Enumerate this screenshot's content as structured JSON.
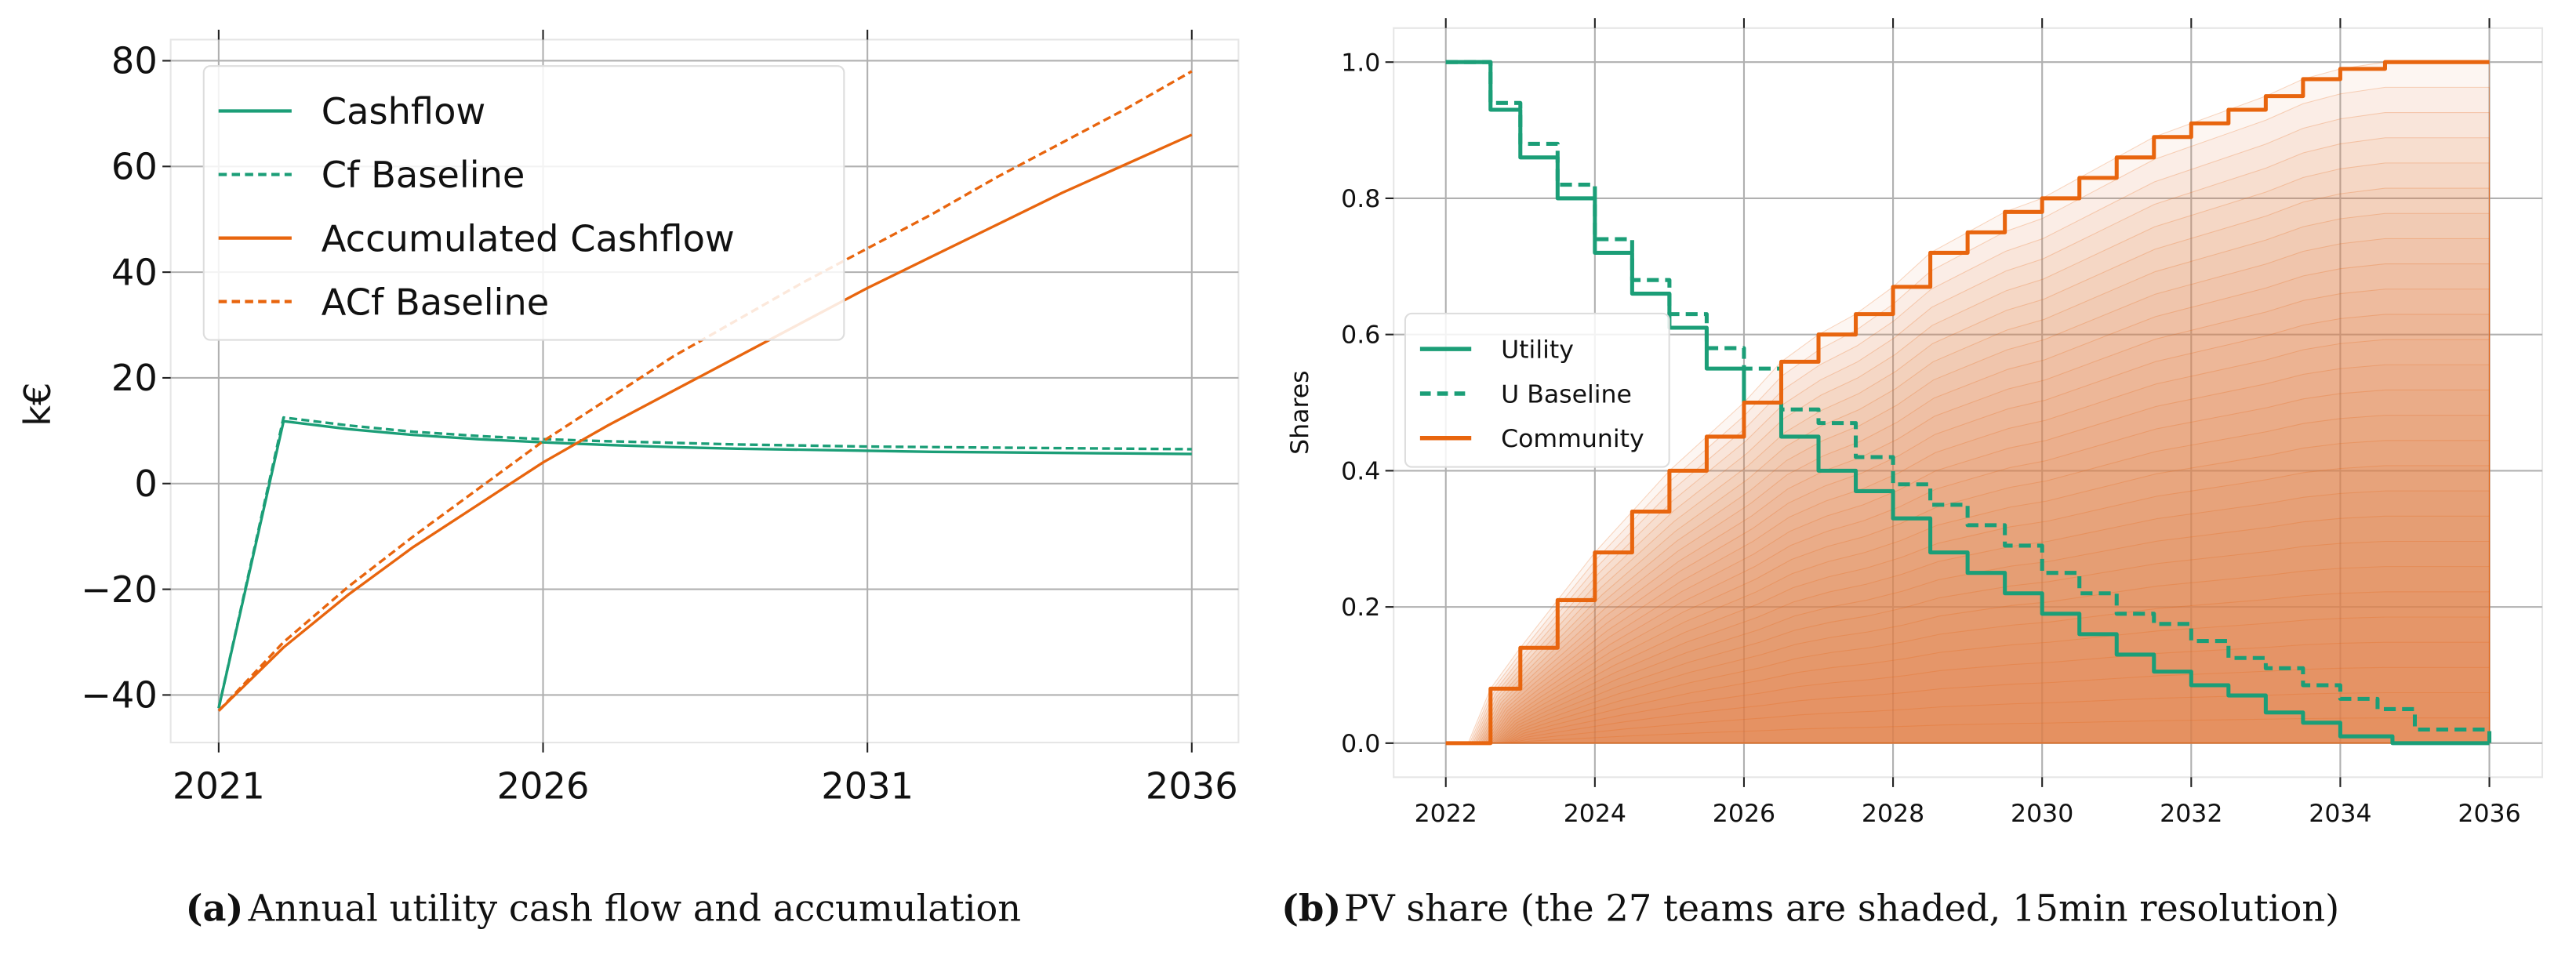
{
  "colors": {
    "teal": "#1b9e77",
    "orange": "#e8650e",
    "shade": "#e8894a",
    "grid": "#b0b0b0"
  },
  "chart_data": [
    {
      "type": "line",
      "title": "",
      "caption_label": "(a)",
      "caption": "Annual utility cash flow and accumulation",
      "xlabel": "",
      "ylabel": "k€",
      "xlim": [
        2020.26,
        2036.72
      ],
      "ylim": [
        -49,
        84
      ],
      "xticks": [
        2021,
        2026,
        2031,
        2036
      ],
      "xtick_labels": [
        "2021",
        "2026",
        "2031",
        "2036"
      ],
      "yticks": [
        -40,
        -20,
        0,
        20,
        40,
        60,
        80
      ],
      "ytick_labels": [
        "−40",
        "−20",
        "0",
        "20",
        "40",
        "60",
        "80"
      ],
      "grid": true,
      "legend_placement": "top-left",
      "x": [
        2021,
        2022,
        2023,
        2024,
        2025,
        2026,
        2027,
        2028,
        2029,
        2030,
        2031,
        2032,
        2033,
        2034,
        2035,
        2036
      ],
      "series": [
        {
          "name": "Cashflow",
          "color": "teal",
          "dash": false,
          "values": [
            -42.5,
            11.8,
            10.3,
            9.2,
            8.4,
            7.8,
            7.3,
            6.9,
            6.6,
            6.4,
            6.2,
            6.0,
            5.9,
            5.8,
            5.7,
            5.6
          ]
        },
        {
          "name": "Cf Baseline",
          "color": "teal",
          "dash": true,
          "values": [
            -42.5,
            12.5,
            11.0,
            9.8,
            9.0,
            8.4,
            8.0,
            7.7,
            7.4,
            7.2,
            7.0,
            6.9,
            6.8,
            6.7,
            6.6,
            6.5
          ]
        },
        {
          "name": "Accumulated Cashflow",
          "color": "orange",
          "dash": false,
          "values": [
            -43,
            -31,
            -21,
            -12,
            -4,
            4,
            11,
            17.5,
            24,
            30.5,
            37,
            43,
            49,
            55,
            60.5,
            66
          ]
        },
        {
          "name": "ACf Baseline",
          "color": "orange",
          "dash": true,
          "values": [
            -43,
            -30,
            -19.5,
            -10,
            -1,
            8,
            16,
            24,
            31,
            38,
            44.5,
            51,
            58,
            64.5,
            71,
            78
          ]
        }
      ]
    },
    {
      "type": "area",
      "title": "",
      "caption_label": "(b)",
      "caption": "PV share (the 27 teams are shaded, 15min resolution)",
      "xlabel": "",
      "ylabel": "Shares",
      "xlim": [
        2021.3,
        2036.71
      ],
      "ylim": [
        -0.05,
        1.05
      ],
      "xticks": [
        2022,
        2024,
        2026,
        2028,
        2030,
        2032,
        2034,
        2036
      ],
      "xtick_labels": [
        "2022",
        "2024",
        "2026",
        "2028",
        "2030",
        "2032",
        "2034",
        "2036"
      ],
      "yticks": [
        0,
        0.2,
        0.4,
        0.6,
        0.8,
        1.0
      ],
      "ytick_labels": [
        "0.0",
        "0.2",
        "0.4",
        "0.6",
        "0.8",
        "1.0"
      ],
      "grid": true,
      "legend_placement": "center-left",
      "n_teams_shaded": 27,
      "series": [
        {
          "name": "Utility",
          "color": "teal",
          "dash": false,
          "x": [
            2022,
            2022.3,
            2022.6,
            2023,
            2023.5,
            2024,
            2024.5,
            2025,
            2025.5,
            2026,
            2026.5,
            2027,
            2027.5,
            2028,
            2028.5,
            2029,
            2029.5,
            2030,
            2030.5,
            2031,
            2031.5,
            2032,
            2032.5,
            2033,
            2033.5,
            2034,
            2034.7,
            2036
          ],
          "values": [
            1.0,
            1.0,
            0.93,
            0.86,
            0.8,
            0.72,
            0.66,
            0.61,
            0.55,
            0.5,
            0.45,
            0.4,
            0.37,
            0.33,
            0.28,
            0.25,
            0.22,
            0.19,
            0.16,
            0.13,
            0.105,
            0.085,
            0.07,
            0.045,
            0.03,
            0.01,
            0.0,
            0.0
          ]
        },
        {
          "name": "U Baseline",
          "color": "teal",
          "dash": true,
          "x": [
            2022,
            2022.3,
            2022.6,
            2023,
            2023.5,
            2024,
            2024.5,
            2025,
            2025.5,
            2026,
            2026.5,
            2027,
            2027.5,
            2028,
            2028.5,
            2029,
            2029.5,
            2030,
            2030.5,
            2031,
            2031.5,
            2032,
            2032.5,
            2033,
            2033.5,
            2034,
            2034.5,
            2035,
            2036
          ],
          "values": [
            1.0,
            1.0,
            0.94,
            0.88,
            0.82,
            0.74,
            0.68,
            0.63,
            0.58,
            0.55,
            0.49,
            0.47,
            0.42,
            0.38,
            0.35,
            0.32,
            0.29,
            0.25,
            0.22,
            0.19,
            0.175,
            0.15,
            0.125,
            0.11,
            0.085,
            0.065,
            0.05,
            0.02,
            0.0
          ]
        },
        {
          "name": "Community",
          "color": "orange",
          "dash": false,
          "x": [
            2022,
            2022.3,
            2022.6,
            2023,
            2023.5,
            2024,
            2024.5,
            2025,
            2025.5,
            2026,
            2026.5,
            2027,
            2027.5,
            2028,
            2028.5,
            2029,
            2029.5,
            2030,
            2030.5,
            2031,
            2031.5,
            2032,
            2032.5,
            2033,
            2033.5,
            2034,
            2034.6,
            2036
          ],
          "values": [
            0,
            0,
            0.08,
            0.14,
            0.21,
            0.28,
            0.34,
            0.4,
            0.45,
            0.5,
            0.56,
            0.6,
            0.63,
            0.67,
            0.72,
            0.75,
            0.78,
            0.8,
            0.83,
            0.86,
            0.89,
            0.91,
            0.93,
            0.95,
            0.975,
            0.99,
            1.0,
            1.0
          ]
        }
      ]
    }
  ]
}
